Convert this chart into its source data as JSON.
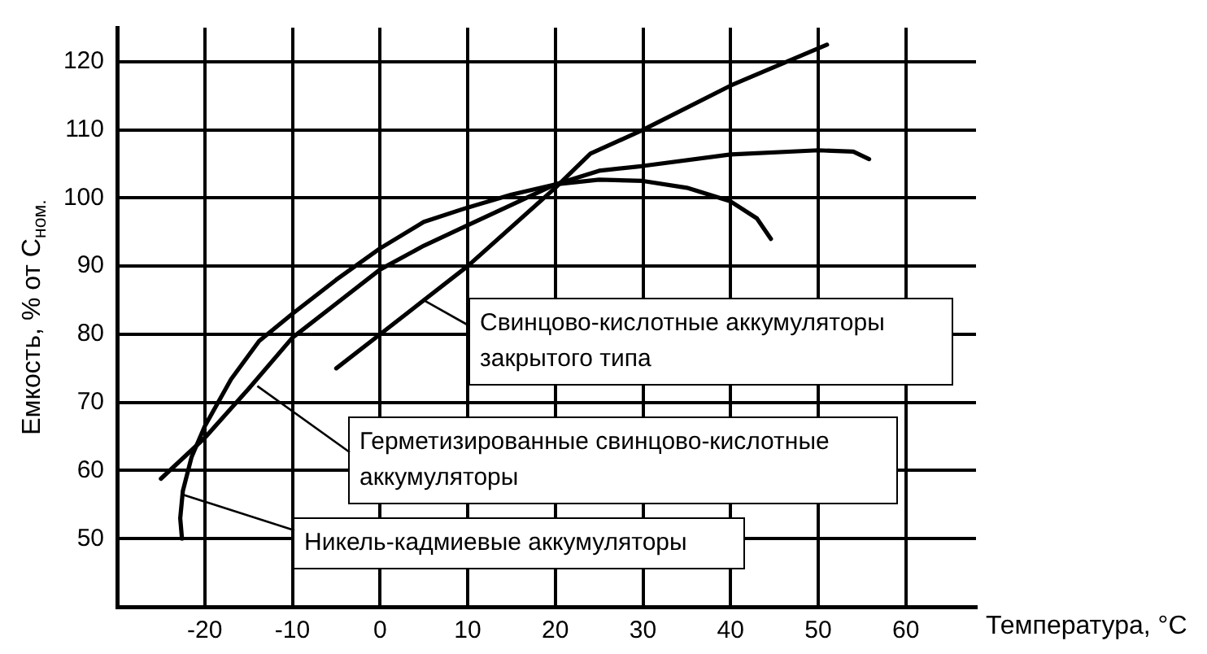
{
  "chart_data": {
    "type": "line",
    "xlabel": "Температура, °C",
    "ylabel": "Емкость, % от C$_{ном.}$",
    "xlim": [
      -30,
      68
    ],
    "xticks": [
      -20,
      -10,
      0,
      10,
      20,
      30,
      40,
      50,
      60
    ],
    "ylim": [
      40,
      125
    ],
    "yticks": [
      50,
      60,
      70,
      80,
      90,
      100,
      110,
      120
    ],
    "grid": true,
    "legend": false,
    "marker": "none",
    "line_style": "solid",
    "series": [
      {
        "color": "#000000",
        "x": [
          -5,
          0,
          10,
          20,
          24,
          30,
          40,
          51
        ],
        "values": [
          75,
          80,
          90,
          101.5,
          106.5,
          110,
          116.5,
          122.5
        ]
      },
      {
        "color": "#000000",
        "x": [
          -25,
          -20,
          -15,
          -10,
          -5,
          0,
          5,
          10,
          15,
          20,
          25,
          30,
          40,
          50,
          54,
          55.8
        ],
        "values": [
          58.8,
          64.8,
          72,
          79.5,
          84.5,
          89.5,
          93,
          96,
          99,
          102,
          104,
          104.7,
          106.4,
          107,
          106.8,
          105.7
        ]
      },
      {
        "color": "#000000",
        "x": [
          -22.6,
          -22.8,
          -22.5,
          -21.5,
          -20,
          -17,
          -13.8,
          -10,
          -5,
          0,
          5,
          10,
          15,
          20,
          25,
          30,
          35,
          40,
          43,
          44.6
        ],
        "values": [
          50,
          53,
          57,
          62,
          66.5,
          73.4,
          79,
          83,
          88,
          92.6,
          96.5,
          98.6,
          100.5,
          102,
          102.7,
          102.5,
          101.5,
          99.5,
          97,
          94
        ]
      }
    ],
    "annotations": [
      {
        "text": "Свинцово-кислотные аккумуляторы закрытого типа",
        "x": 5,
        "y": 85
      },
      {
        "text": "Герметизированные свинцово-кислотные аккумуляторы",
        "x": -14,
        "y": 72.4
      },
      {
        "text": "Никель-кадмиевые аккумуляторы",
        "x": -22.6,
        "y": 56.5
      }
    ]
  }
}
